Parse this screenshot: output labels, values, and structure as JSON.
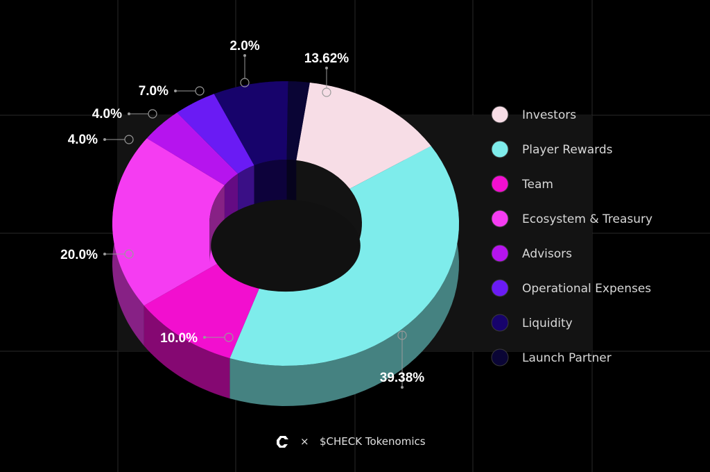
{
  "chart_data": {
    "type": "pie",
    "style": "3d-donut",
    "series": [
      {
        "name": "Investors",
        "value": 13.62,
        "label": "13.62%",
        "color": "#f7dde6"
      },
      {
        "name": "Player Rewards",
        "value": 39.38,
        "label": "39.38%",
        "color": "#7eeceb"
      },
      {
        "name": "Team",
        "value": 10.0,
        "label": "10.0%",
        "color": "#f20fcf"
      },
      {
        "name": "Ecosystem & Treasury",
        "value": 20.0,
        "label": "20.0%",
        "color": "#f53cf2"
      },
      {
        "name": "Advisors",
        "value": 4.0,
        "label": "4.0%",
        "color": "#b614ee"
      },
      {
        "name": "Operational Expenses",
        "value": 4.0,
        "label": "4.0%",
        "color": "#6a1bf4"
      },
      {
        "name": "Liquidity",
        "value": 7.0,
        "label": "7.0%",
        "color": "#17036b"
      },
      {
        "name": "Launch Partner",
        "value": 2.0,
        "label": "2.0%",
        "color": "#0a0535"
      }
    ],
    "legend_placement": "right"
  },
  "footer": {
    "separator": "×",
    "title": "$CHECK Tokenomics",
    "logo_icon": "check-logo-icon"
  },
  "colors": {
    "background": "#000000",
    "grid": "#2a2a2a",
    "panel": "#141414",
    "leader": "#9a9a9a"
  }
}
